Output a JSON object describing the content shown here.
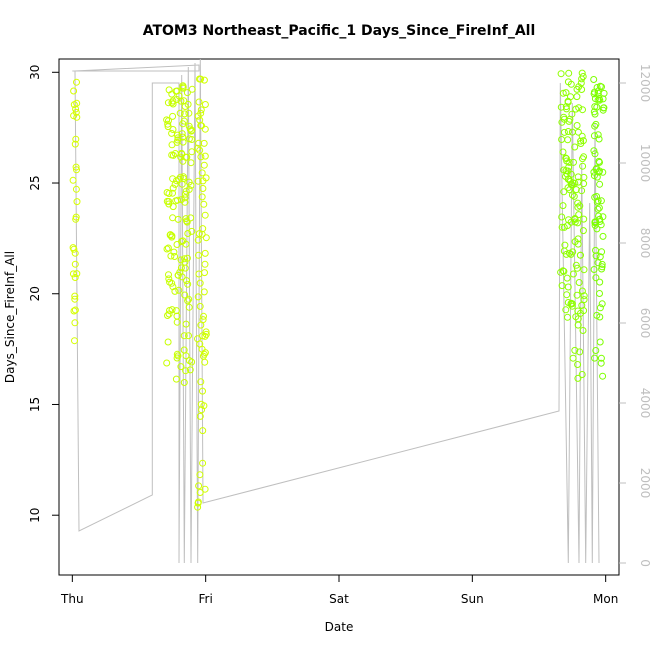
{
  "chart_data": {
    "type": "scatter",
    "title": "ATOM3 Northeast_Pacific_1 Days_Since_FireInf_All",
    "xlabel": "Date",
    "ylabel": "Days_Since_FireInf_All",
    "x_ticks": [
      "Thu",
      "Fri",
      "Sat",
      "Sun",
      "Mon"
    ],
    "y_ticks": [
      "10",
      "15",
      "20",
      "25",
      "30"
    ],
    "y2_ticks": [
      "0",
      "2000",
      "4000",
      "6000",
      "8000",
      "10000",
      "12000"
    ],
    "xlim": [
      -0.1,
      4.1
    ],
    "ylim": [
      7.3,
      30.6
    ],
    "y2lim": [
      -300,
      12600
    ],
    "grid": false,
    "legend": "none",
    "point_symbol": "open circle",
    "series_colors": [
      "#d6ff00",
      "#b3ff00",
      "#80ff00"
    ],
    "line_color": "#bfbfbf",
    "clusters": [
      {
        "x_center": 0.02,
        "x_spread": 0.015,
        "n": 30,
        "y_min": 16.9,
        "y_max": 29.6,
        "color": "#d6ff00"
      },
      {
        "x_center": 0.8,
        "x_spread": 0.1,
        "n": 150,
        "y_min": 15.5,
        "y_max": 29.4,
        "color": "#c7ff00"
      },
      {
        "x_center": 0.97,
        "x_spread": 0.035,
        "n": 70,
        "y_min": 7.9,
        "y_max": 29.8,
        "color": "#d0ff00"
      },
      {
        "x_center": 3.75,
        "x_spread": 0.09,
        "n": 140,
        "y_min": 15.9,
        "y_max": 30.0,
        "color": "#8fff00"
      },
      {
        "x_center": 3.95,
        "x_spread": 0.04,
        "n": 80,
        "y_min": 15.8,
        "y_max": 29.7,
        "color": "#7dff00"
      }
    ],
    "line_path_y2": [
      [
        0.0,
        12300
      ],
      [
        0.95,
        12300
      ],
      [
        0.95,
        12450
      ],
      [
        0.02,
        12300
      ],
      [
        0.05,
        800
      ],
      [
        0.6,
        1700
      ],
      [
        0.6,
        12000
      ],
      [
        0.8,
        12000
      ],
      [
        0.8,
        0
      ],
      [
        0.82,
        12200
      ],
      [
        0.84,
        0
      ],
      [
        0.87,
        12400
      ],
      [
        0.89,
        0
      ],
      [
        0.92,
        12500
      ],
      [
        0.94,
        0
      ],
      [
        0.96,
        12600
      ],
      [
        0.98,
        1500
      ],
      [
        3.65,
        3800
      ],
      [
        3.66,
        12000
      ],
      [
        3.72,
        0
      ],
      [
        3.75,
        11500
      ],
      [
        3.8,
        0
      ],
      [
        3.82,
        10000
      ],
      [
        3.85,
        0
      ],
      [
        3.88,
        9000
      ],
      [
        3.9,
        0
      ],
      [
        3.92,
        11000
      ],
      [
        3.95,
        0
      ]
    ]
  }
}
